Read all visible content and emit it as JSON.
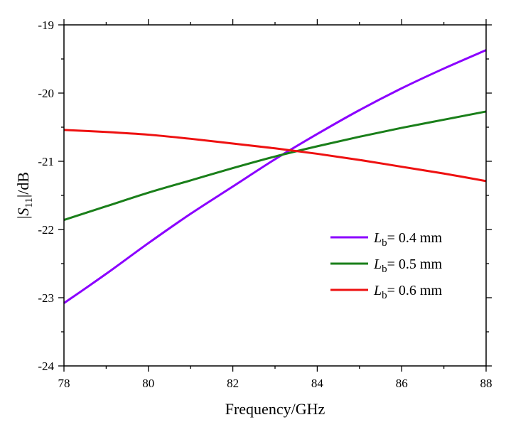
{
  "chart_data": {
    "type": "line",
    "xlabel": "Frequency/GHz",
    "ylabel": {
      "pre": "|",
      "italic": "S",
      "sub": "11",
      "post": "|/dB"
    },
    "xlim": [
      78,
      88
    ],
    "ylim": [
      -24,
      -19
    ],
    "xticks": [
      "78",
      "80",
      "82",
      "84",
      "86",
      "88"
    ],
    "yticks": [
      "-19",
      "-20",
      "-21",
      "-22",
      "-23",
      "-24"
    ],
    "grid": false,
    "legend_position": "bottom-right",
    "series": [
      {
        "name": "Lb= 0.4 mm",
        "label_italic": "L",
        "label_sub": "b",
        "label_rest": "= 0.4 mm",
        "color": "#8B00FF",
        "x": [
          78,
          79,
          80,
          81,
          82,
          83,
          84,
          85,
          86,
          87,
          88
        ],
        "y": [
          -23.08,
          -22.65,
          -22.2,
          -21.77,
          -21.37,
          -20.97,
          -20.6,
          -20.25,
          -19.93,
          -19.64,
          -19.37
        ]
      },
      {
        "name": "Lb= 0.5 mm",
        "label_italic": "L",
        "label_sub": "b",
        "label_rest": "= 0.5 mm",
        "color": "#1A7F1A",
        "x": [
          78,
          79,
          80,
          81,
          82,
          83,
          84,
          85,
          86,
          87,
          88
        ],
        "y": [
          -21.86,
          -21.66,
          -21.46,
          -21.28,
          -21.1,
          -20.93,
          -20.78,
          -20.64,
          -20.51,
          -20.39,
          -20.27
        ]
      },
      {
        "name": "Lb= 0.6 mm",
        "label_italic": "L",
        "label_sub": "b",
        "label_rest": "= 0.6 mm",
        "color": "#EE1111",
        "x": [
          78,
          79,
          80,
          81,
          82,
          83,
          84,
          85,
          86,
          87,
          88
        ],
        "y": [
          -20.54,
          -20.57,
          -20.61,
          -20.67,
          -20.74,
          -20.81,
          -20.89,
          -20.98,
          -21.08,
          -21.18,
          -21.29
        ]
      }
    ]
  }
}
